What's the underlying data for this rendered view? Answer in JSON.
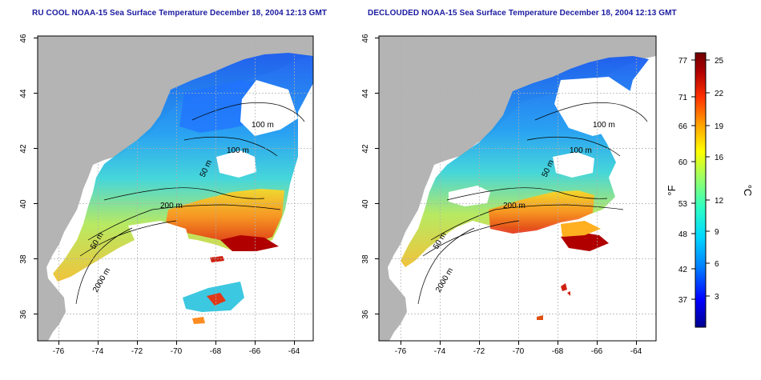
{
  "left_map": {
    "title": "RU COOL NOAA-15 Sea Surface Temperature December 18, 2004 12:13 GMT"
  },
  "right_map": {
    "title": "DECLOUDED NOAA-15 Sea Surface Temperature December 18, 2004 12:13 GMT"
  },
  "axes": {
    "lon_ticks": [
      "-76",
      "-74",
      "-72",
      "-70",
      "-68",
      "-66",
      "-64"
    ],
    "lat_ticks": [
      "46",
      "44",
      "42",
      "40",
      "38",
      "36"
    ]
  },
  "contours": {
    "labels": [
      "100 m",
      "100 m",
      "50 m",
      "200 m",
      "50 m",
      "2000 m"
    ]
  },
  "colorbar": {
    "fahrenheit_label": "°F",
    "celsius_label": "°C",
    "fahrenheit_ticks": [
      "77",
      "71",
      "66",
      "60",
      "53",
      "48",
      "42",
      "37"
    ],
    "celsius_ticks": [
      "25",
      "22",
      "19",
      "16",
      "12",
      "9",
      "6",
      "3"
    ],
    "colors": [
      "#000090",
      "#0000ff",
      "#0080ff",
      "#00d8ff",
      "#30ffc0",
      "#a0ff60",
      "#ffff00",
      "#ffa000",
      "#ff3000",
      "#b00000",
      "#700000"
    ]
  },
  "colors": {
    "land": "#b4b4b4",
    "ocean_bg": "#ffffff",
    "title_text": "#1a1aa0"
  }
}
